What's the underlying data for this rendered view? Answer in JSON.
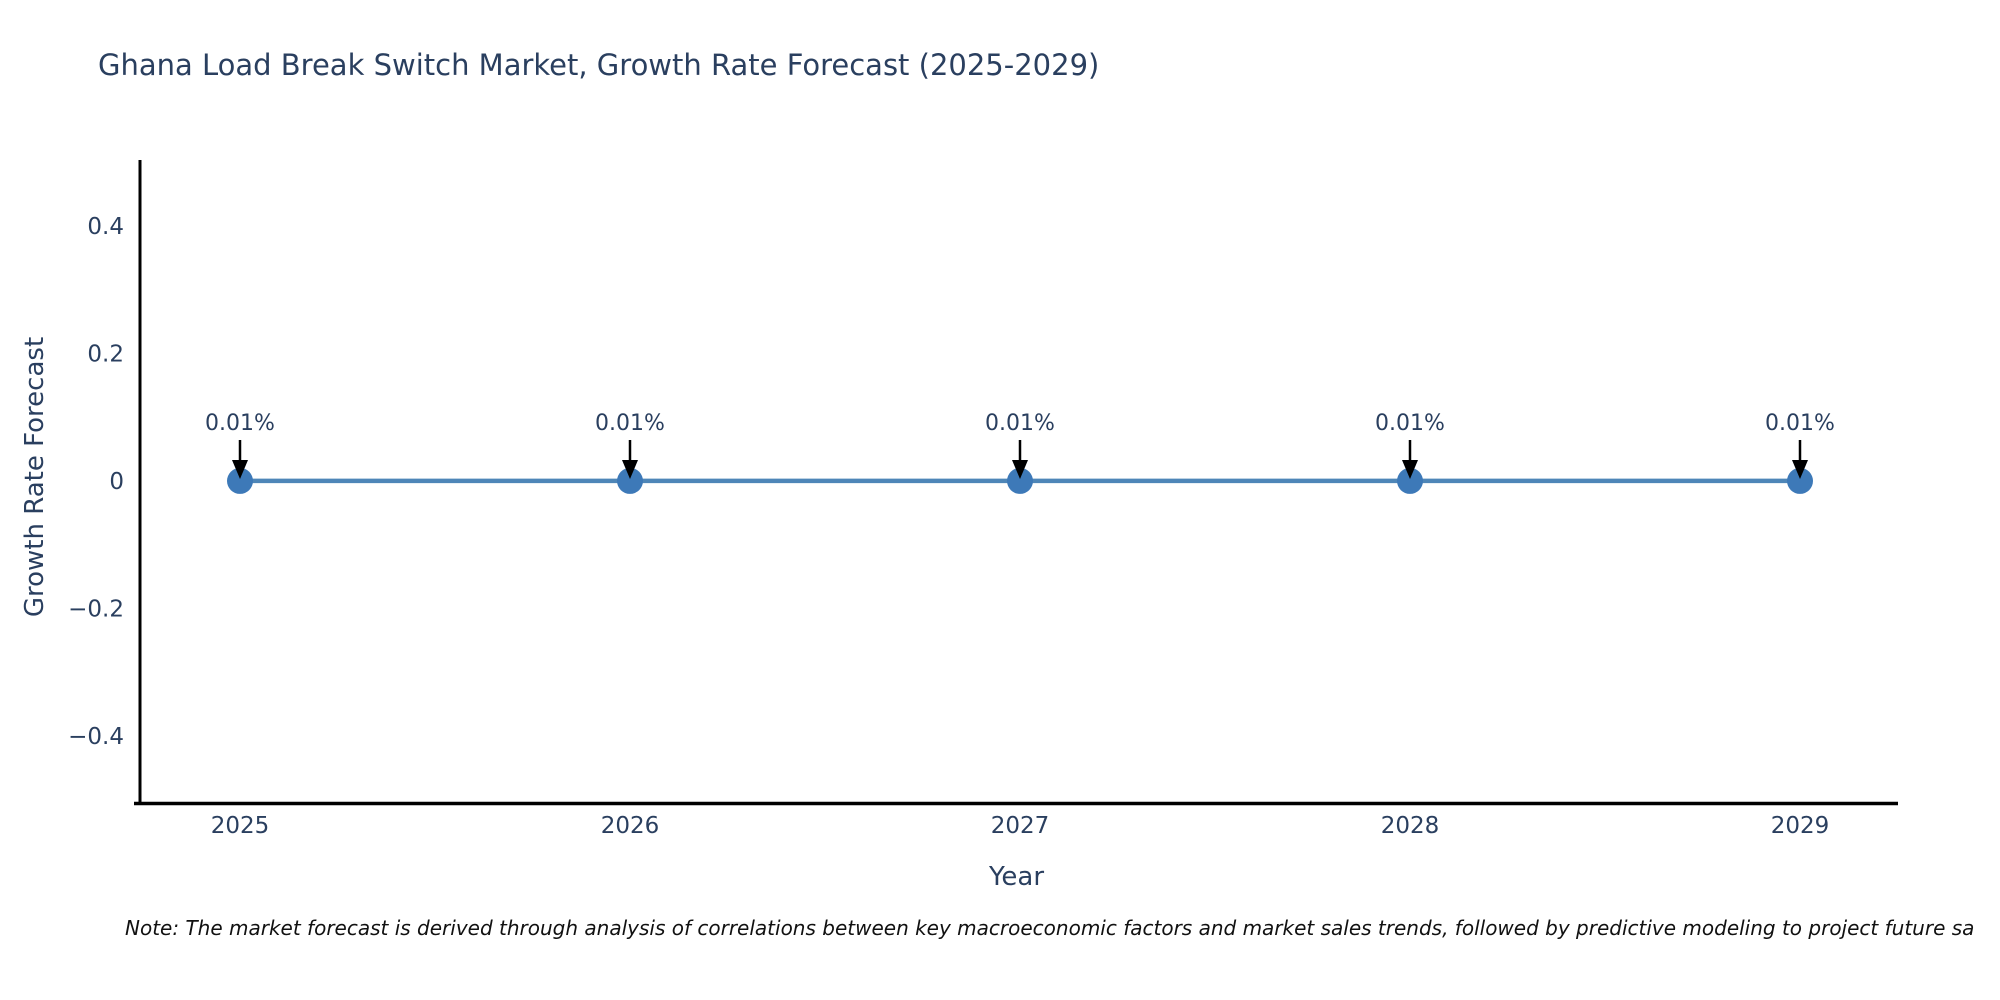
{
  "title": "Ghana Load Break Switch Market, Growth Rate Forecast (2025-2029)",
  "note": "Note: The market forecast is derived through analysis of correlations between key macroeconomic factors and market sales trends, followed by predictive modeling to project future sa",
  "colors": {
    "background": "#ffffff",
    "text": "#2a3f5f",
    "axis_line": "#000000",
    "line": "#4e86b8",
    "marker": "#3d79b8",
    "arrow": "#000000",
    "note_text": "#111111"
  },
  "chart_data": {
    "type": "line",
    "title": "Ghana Load Break Switch Market, Growth Rate Forecast (2025-2029)",
    "xlabel": "Year",
    "ylabel": "Growth Rate Forecast",
    "x": [
      2025,
      2026,
      2027,
      2028,
      2029
    ],
    "series": [
      {
        "name": "Growth Rate Forecast",
        "values": [
          0.01,
          0.01,
          0.01,
          0.01,
          0.01
        ],
        "value_unit": "percent"
      }
    ],
    "point_labels": [
      "0.01%",
      "0.01%",
      "0.01%",
      "0.01%",
      "0.01%"
    ],
    "x_tick_labels": [
      "2025",
      "2026",
      "2027",
      "2028",
      "2029"
    ],
    "y_tick_labels": [
      "0.4",
      "0.2",
      "0",
      "−0.2",
      "−0.4"
    ],
    "y_tick_values": [
      0.4,
      0.2,
      0,
      -0.2,
      -0.4
    ],
    "ylim": [
      -0.5,
      0.51
    ],
    "grid": false,
    "legend": "none",
    "marker_style": "circle",
    "annotation_arrows": true
  }
}
